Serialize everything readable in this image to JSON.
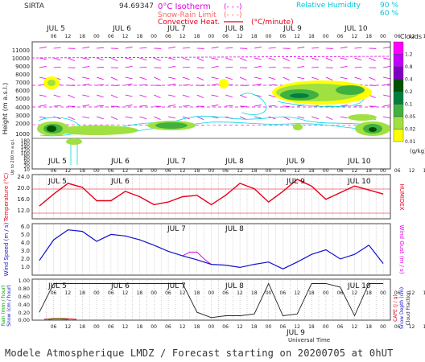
{
  "header": {
    "site": "SIRTA",
    "code": "94.69347",
    "isotherm_label": "0°C Isotherm",
    "isotherm_sym": "(- - -)",
    "snow_rain_label": "Snow-Rain Limit",
    "snow_rain_sym": "(- - -)",
    "convective_label": "Convective Heat.",
    "convective_unit": "(°C/minute)",
    "rh_label": "Relative Humidity",
    "rh_90": "90 %",
    "rh_60": "60 %"
  },
  "colors": {
    "magenta": "#e000e0",
    "cyan": "#00d8e0",
    "red": "#e8001a",
    "blue": "#1010d0",
    "grid": "#999999"
  },
  "days": [
    "JUL 5",
    "JUL 6",
    "JUL 7",
    "JUL 8",
    "JUL 9",
    "JUL 10"
  ],
  "hour_ticks": [
    "06",
    "12",
    "18",
    "00",
    "06",
    "12",
    "18",
    "00",
    "06",
    "12",
    "18",
    "00",
    "06",
    "12",
    "18",
    "00",
    "06",
    "12",
    "18",
    "00",
    "06",
    "12",
    "18",
    "00",
    "06",
    "12",
    "18"
  ],
  "panel1": {
    "ylabel": "Height (m a.s.l.)",
    "ylabel_low": "Up to 200 m a.g.l.",
    "yticks_high": [
      "11000",
      "10000",
      "9000",
      "8000",
      "7000",
      "6000",
      "5000",
      "4000",
      "3000",
      "2000",
      "1000"
    ],
    "yticks_low": [
      "180",
      "160",
      "140",
      "120",
      "100",
      "80",
      "60",
      "40",
      "20",
      "10"
    ],
    "colorbar_title": "Clouds",
    "colorbar_unit": "(g/kg)",
    "colorbar_levels": [
      "1.2",
      "0.8",
      "0.4",
      "0.2",
      "0.1",
      "0.05",
      "0.02",
      "0.01"
    ],
    "colorbar_colors": [
      "#ff00ff",
      "#c000ff",
      "#8000c0",
      "#005000",
      "#008040",
      "#40b040",
      "#a0e040",
      "#ffff00"
    ]
  },
  "panel2": {
    "ylabel": "Temperature (°C)",
    "right_label": "HUMIDEX",
    "yticks": [
      "24.0",
      "20.0",
      "16.0",
      "12.0"
    ]
  },
  "panel3": {
    "ylabel": "Wind Speed (m / s)",
    "right_label": "Wind Gust (m / s)",
    "yticks": [
      "6.0",
      "5.0",
      "4.0",
      "3.0",
      "2.0",
      "1.0"
    ]
  },
  "panel4": {
    "ylabel_rain": "Rain (mm / hour)",
    "ylabel_snow": "Snow (cm / hour)",
    "right_cape": "CAPE (J / g)",
    "right_snowdepth": "Snow Depth (cm)",
    "right_cloud": "Cloud Fraction",
    "yticks": [
      "1.00",
      "0.80",
      "0.60",
      "0.40",
      "0.20",
      "0.00"
    ],
    "xlabel": "Universal Time"
  },
  "footer": "Modele Atmospherique LMDZ / Forecast starting on 20200705 at 0hUT",
  "chart_data": [
    {
      "type": "line",
      "title": "Temperature",
      "x_hours": [
        0,
        6,
        12,
        18,
        24,
        30,
        36,
        42,
        48,
        54,
        60,
        66,
        72,
        78,
        84,
        90,
        96,
        102,
        108,
        114,
        120,
        126,
        132,
        138,
        144
      ],
      "series": [
        {
          "name": "Temperature",
          "values": [
            14.5,
            19,
            23,
            21.5,
            16.5,
            16.5,
            20,
            18,
            15,
            16,
            18,
            18.5,
            15,
            18.5,
            23,
            21,
            16,
            20,
            24.5,
            22,
            17,
            19.5,
            22,
            20.5,
            19
          ]
        }
      ],
      "ylim": [
        10,
        26
      ],
      "ylabel": "Temperature (°C)"
    },
    {
      "type": "line",
      "title": "Wind Speed",
      "x_hours": [
        0,
        6,
        12,
        18,
        24,
        30,
        36,
        42,
        48,
        54,
        60,
        66,
        72,
        78,
        84,
        90,
        96,
        102,
        108,
        114,
        120,
        126,
        132,
        138,
        144
      ],
      "series": [
        {
          "name": "Wind Speed",
          "values": [
            1.8,
            4.5,
            5.8,
            5.6,
            4.3,
            5.2,
            5.0,
            4.5,
            3.8,
            3.0,
            2.4,
            1.9,
            1.3,
            1.2,
            0.9,
            1.3,
            1.6,
            0.7,
            1.6,
            2.6,
            3.2,
            2.0,
            2.6,
            3.8,
            1.4
          ]
        },
        {
          "name": "Wind Gust",
          "values": [
            null,
            null,
            null,
            null,
            null,
            null,
            null,
            null,
            null,
            null,
            null,
            2.9,
            null,
            null,
            null,
            null,
            null,
            null,
            null,
            null,
            null,
            null,
            null,
            null,
            null
          ]
        }
      ],
      "ylim": [
        0,
        6.5
      ],
      "ylabel": "Wind Speed (m / s)"
    },
    {
      "type": "line",
      "title": "Cloud Fraction",
      "x_hours": [
        0,
        6,
        12,
        18,
        24,
        30,
        36,
        42,
        48,
        54,
        60,
        66,
        72,
        78,
        84,
        90,
        96,
        102,
        108,
        114,
        120,
        126,
        132,
        138,
        144
      ],
      "series": [
        {
          "name": "Cloud Fraction",
          "values": [
            0.2,
            1.0,
            1.0,
            1.0,
            1.0,
            1.0,
            1.0,
            1.0,
            1.0,
            1.0,
            1.0,
            0.2,
            0.05,
            0.1,
            0.1,
            0.15,
            1.0,
            0.1,
            0.15,
            1.0,
            1.0,
            0.9,
            0.1,
            1.0,
            1.0
          ]
        }
      ],
      "ylim": [
        0,
        1.1
      ],
      "ylabel": "Rain (mm / hour)"
    }
  ]
}
